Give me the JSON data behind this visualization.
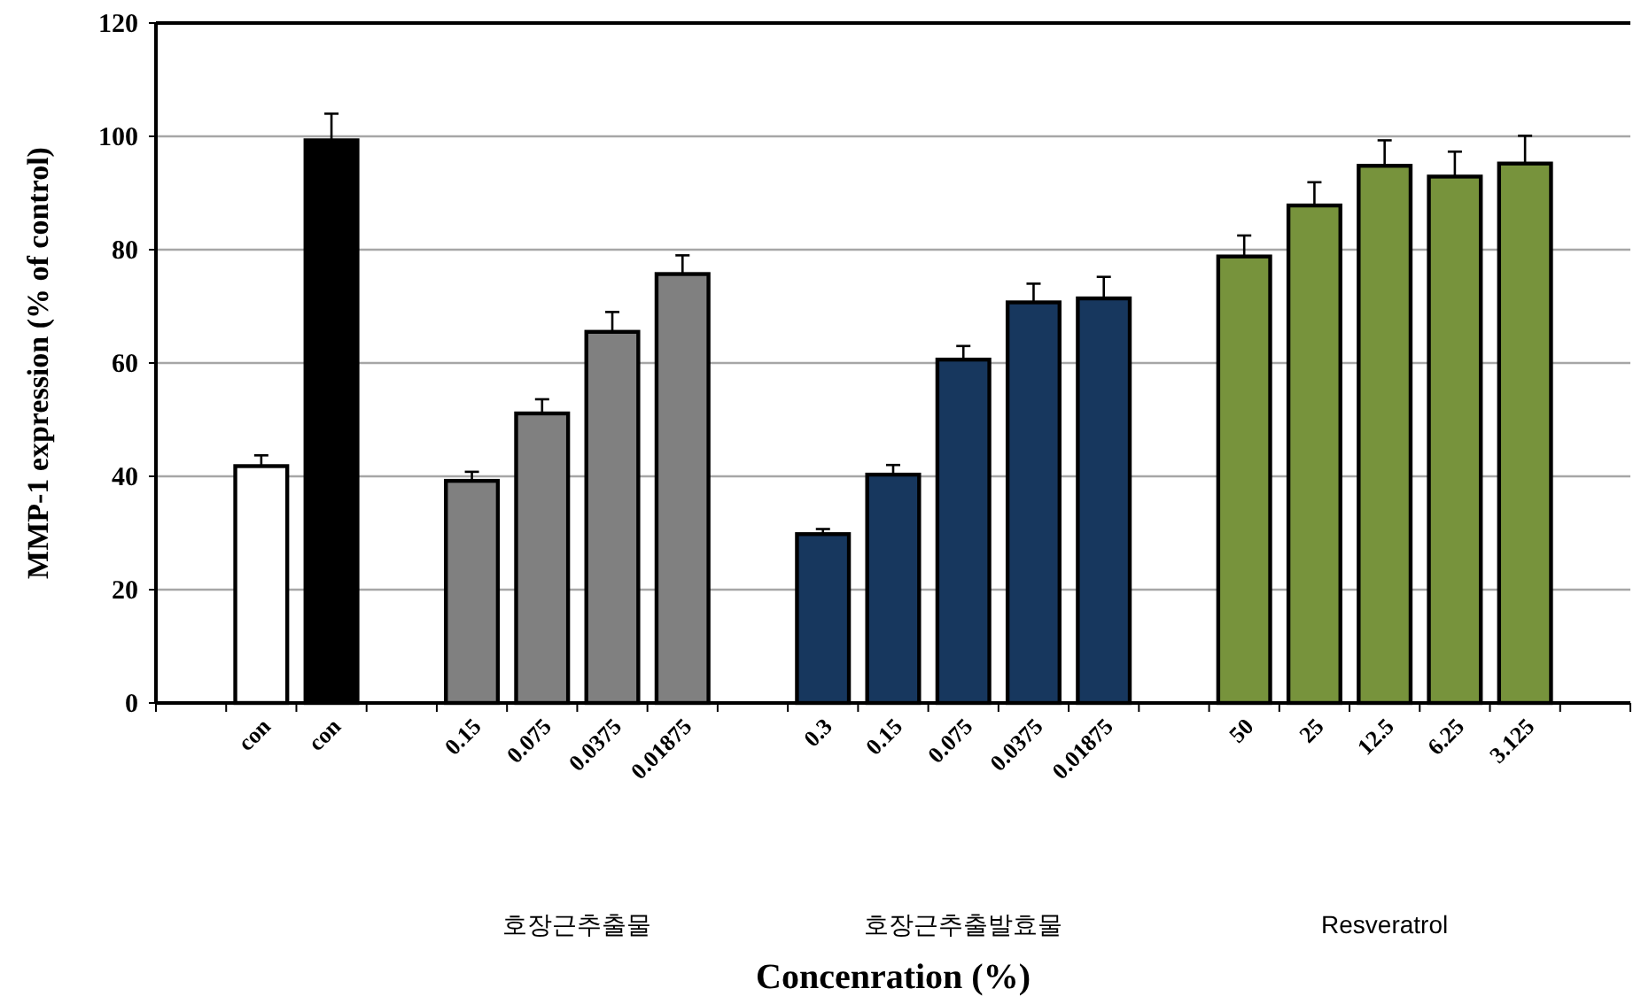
{
  "chart_data": {
    "type": "bar",
    "ylabel": "MMP-1 expression (% of control)",
    "xlabel": "Concenration (%)",
    "categories": [
      null,
      "con",
      "con",
      null,
      "0.15",
      "0.075",
      "0.0375",
      "0.01875",
      null,
      "0.3",
      "0.15",
      "0.075",
      "0.0375",
      "0.01875",
      null,
      "50",
      "25",
      "12.5",
      "6.25",
      "3.125",
      null
    ],
    "values": [
      null,
      41.8,
      99.3,
      null,
      39.2,
      51.1,
      65.5,
      75.7,
      null,
      29.8,
      40.3,
      60.6,
      70.7,
      71.4,
      null,
      78.8,
      87.8,
      94.8,
      92.9,
      95.2,
      null
    ],
    "errors": [
      null,
      [
        41.8,
        43.7
      ],
      [
        99.3,
        104
      ],
      null,
      [
        39.2,
        40.8
      ],
      [
        51.1,
        53.6
      ],
      [
        65.5,
        69
      ],
      [
        75.7,
        79
      ],
      null,
      [
        29.8,
        30.7
      ],
      [
        40.3,
        42
      ],
      [
        60.6,
        63
      ],
      [
        70.7,
        74
      ],
      [
        71.4,
        75.2
      ],
      null,
      [
        78.8,
        82.5
      ],
      [
        87.8,
        91.9
      ],
      [
        94.8,
        99.3
      ],
      [
        92.9,
        97.3
      ],
      [
        95.2,
        100.1
      ],
      null
    ],
    "colors": [
      null,
      "#ffffff",
      "#000000",
      null,
      "#808080",
      "#808080",
      "#808080",
      "#808080",
      null,
      "#17375e",
      "#17375e",
      "#17375e",
      "#17375e",
      "#17375e",
      null,
      "#77933c",
      "#77933c",
      "#77933c",
      "#77933c",
      "#77933c",
      null
    ],
    "ylim": [
      0,
      120
    ],
    "yticks": [
      0,
      20,
      40,
      60,
      80,
      100,
      120
    ],
    "grid": "y",
    "annotations": [
      "호장근추출물",
      "호장근추출발효물",
      "Resveratrol"
    ]
  }
}
